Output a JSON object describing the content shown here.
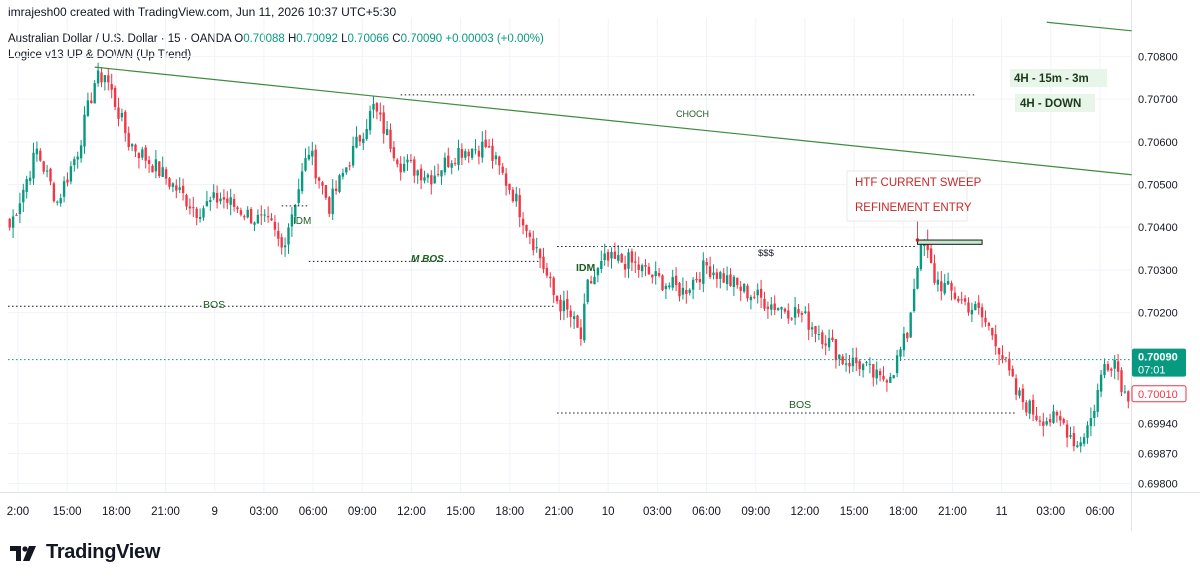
{
  "credit": "imrajesh00 created with TradingView.com, Jun 11, 2026 10:37 UTC+5:30",
  "symbol": "Australian Dollar / U.S. Dollar · 15 · OANDA",
  "ohlc": {
    "o_label": "O",
    "o": "0.70088",
    "h_label": "H",
    "h": "0.70092",
    "l_label": "L",
    "l": "0.70066",
    "c_label": "C",
    "c": "0.70090",
    "change": "+0.00003 (+0.00%)"
  },
  "indicator": "Logice v13 UP & DOWN (Up Trend)",
  "logo_text": "TradingView",
  "colors": {
    "up": "#089981",
    "down": "#f23645",
    "trendline": "#3f8c3f",
    "label_green": "#1b5e20",
    "annotation_red": "#c62828",
    "grid": "#f0f3fa"
  },
  "icons": [
    "tradingview-logo-icon"
  ],
  "chart_data": {
    "type": "candlestick",
    "y_ticks": [
      "0.70800",
      "0.70700",
      "0.70600",
      "0.70500",
      "0.70400",
      "0.70300",
      "0.70200",
      "0.69940",
      "0.69870",
      "0.69800"
    ],
    "y_tick_values": [
      0.708,
      0.707,
      0.706,
      0.705,
      0.704,
      0.703,
      0.702,
      0.6994,
      0.6987,
      0.698
    ],
    "ylim": [
      0.6978,
      0.7089
    ],
    "x_ticks": [
      "2:00",
      "15:00",
      "18:00",
      "21:00",
      "9",
      "03:00",
      "06:00",
      "09:00",
      "12:00",
      "15:00",
      "18:00",
      "21:00",
      "10",
      "03:00",
      "06:00",
      "09:00",
      "12:00",
      "15:00",
      "18:00",
      "21:00",
      "11",
      "03:00",
      "06:00"
    ],
    "last_price": "0.70090",
    "countdown": "07:01",
    "price_marker": "0.70010",
    "candle_keypoints": [
      [
        0,
        0.704
      ],
      [
        8,
        0.7058
      ],
      [
        14,
        0.7046
      ],
      [
        20,
        0.7058
      ],
      [
        25,
        0.7074
      ],
      [
        28,
        0.7076
      ],
      [
        35,
        0.706
      ],
      [
        43,
        0.7054
      ],
      [
        55,
        0.7044
      ],
      [
        62,
        0.7047
      ],
      [
        70,
        0.7043
      ],
      [
        77,
        0.704
      ],
      [
        80,
        0.7035
      ],
      [
        88,
        0.7058
      ],
      [
        94,
        0.7045
      ],
      [
        100,
        0.7056
      ],
      [
        107,
        0.7068
      ],
      [
        115,
        0.7055
      ],
      [
        124,
        0.7052
      ],
      [
        132,
        0.7058
      ],
      [
        140,
        0.7059
      ],
      [
        148,
        0.7048
      ],
      [
        156,
        0.7033
      ],
      [
        160,
        0.7024
      ],
      [
        165,
        0.7019
      ],
      [
        168,
        0.7014
      ],
      [
        170,
        0.7026
      ],
      [
        175,
        0.7032
      ],
      [
        182,
        0.7032
      ],
      [
        190,
        0.7028
      ],
      [
        198,
        0.7025
      ],
      [
        205,
        0.7031
      ],
      [
        214,
        0.7026
      ],
      [
        224,
        0.7022
      ],
      [
        232,
        0.702
      ],
      [
        240,
        0.7014
      ],
      [
        245,
        0.7009
      ],
      [
        250,
        0.7008
      ],
      [
        256,
        0.7004
      ],
      [
        260,
        0.7007
      ],
      [
        264,
        0.7015
      ],
      [
        267,
        0.7032
      ],
      [
        269,
        0.7036
      ],
      [
        272,
        0.7028
      ],
      [
        278,
        0.7024
      ],
      [
        285,
        0.702
      ],
      [
        290,
        0.7014
      ],
      [
        296,
        0.7001
      ],
      [
        302,
        0.6996
      ],
      [
        310,
        0.6994
      ],
      [
        314,
        0.6989
      ],
      [
        318,
        0.6995
      ],
      [
        322,
        0.7008
      ],
      [
        325,
        0.7009
      ],
      [
        328,
        0.7001
      ]
    ],
    "annotations": [
      {
        "id": "choch",
        "text": "CHOCH",
        "level": 0.7071
      },
      {
        "id": "idm-left",
        "text": "IDM",
        "level": 0.7045
      },
      {
        "id": "m-bos",
        "text": "M BOS",
        "level": 0.7032
      },
      {
        "id": "idm-right",
        "text": "IDM",
        "level": 0.70355
      },
      {
        "id": "sss",
        "text": "$$$",
        "level": 0.70355
      },
      {
        "id": "bos-left",
        "text": "BOS",
        "level": 0.70215
      },
      {
        "id": "bos-right",
        "text": "BOS",
        "level": 0.69965
      }
    ],
    "callout_lines": [
      "HTF CURRENT SWEEP",
      "REFINEMENT ENTRY"
    ],
    "tags": [
      "4H - 15m - 3m",
      "4H - DOWN"
    ],
    "trendlines": [
      {
        "from": [
          25,
          0.70775
        ],
        "to": [
          330,
          0.70523
        ]
      },
      {
        "from": [
          305,
          0.7088
        ],
        "to": [
          330,
          0.7086
        ]
      }
    ],
    "entry_zone": {
      "x_from": 267,
      "x_to": 286,
      "y_top": 0.7037,
      "y_bottom": 0.7036
    },
    "grid": true
  }
}
